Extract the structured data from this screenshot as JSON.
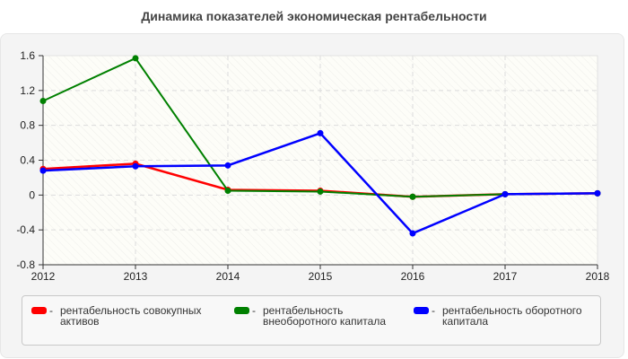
{
  "title": "Динамика показателей экономическая рентабельности",
  "chart_data": {
    "type": "line",
    "title": "Динамика показателей экономическая рентабельности",
    "xlabel": "",
    "ylabel": "",
    "categories": [
      "2012",
      "2013",
      "2014",
      "2015",
      "2016",
      "2017",
      "2018"
    ],
    "ylim": [
      -0.8,
      1.6
    ],
    "yticks": [
      "1.6",
      "1.2",
      "0.8",
      "0.4",
      "0",
      "-0.4",
      "-0.8"
    ],
    "grid": true,
    "legend_position": "bottom",
    "series": [
      {
        "name": "рентабельность совокупных активов",
        "color": "#ff0000",
        "values": [
          0.3,
          0.36,
          0.06,
          0.05,
          -0.02,
          0.01,
          0.02
        ]
      },
      {
        "name": "рентабельность внеоборотного капитала",
        "color": "#008000",
        "values": [
          1.08,
          1.57,
          0.05,
          0.04,
          -0.02,
          0.01,
          0.02
        ]
      },
      {
        "name": "рентабельность оборотного капитала",
        "color": "#0000ff",
        "values": [
          0.28,
          0.33,
          0.34,
          0.71,
          -0.44,
          0.01,
          0.02
        ]
      }
    ]
  },
  "legend": {
    "items": [
      {
        "dash": "-",
        "label": "рентабельность совокупных активов",
        "color": "#ff0000"
      },
      {
        "dash": "-",
        "label": "рентабельность внеоборотного капитала",
        "color": "#008000"
      },
      {
        "dash": "-",
        "label": "рентабельность оборотного капитала",
        "color": "#0000ff"
      }
    ]
  }
}
